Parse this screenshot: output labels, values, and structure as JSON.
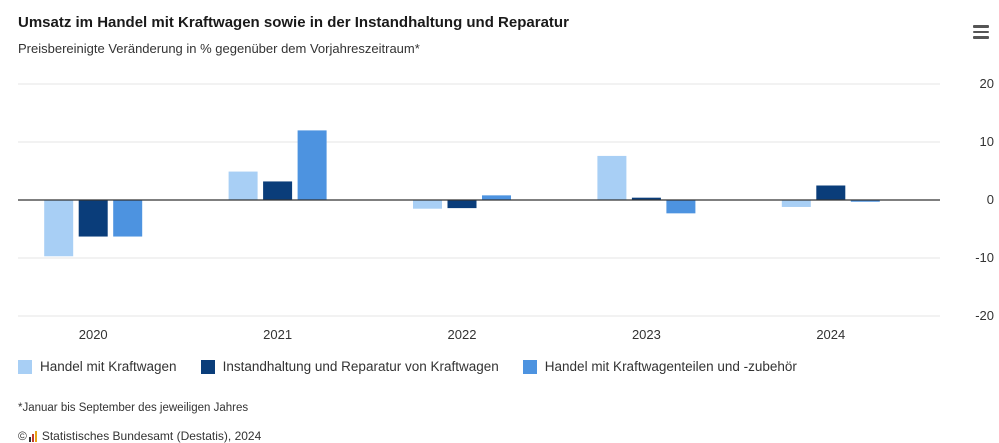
{
  "header": {
    "title": "Umsatz im Handel mit Kraftwagen sowie in der Instandhaltung und Reparatur",
    "subtitle": "Preisbereinigte Veränderung in % gegenüber dem Vorjahreszeitraum*"
  },
  "menu": {
    "icon": "hamburger-menu-icon"
  },
  "chart_data": {
    "type": "bar",
    "title": "Umsatz im Handel mit Kraftwagen sowie in der Instandhaltung und Reparatur",
    "subtitle": "Preisbereinigte Veränderung in % gegenüber dem Vorjahreszeitraum*",
    "categories": [
      "2020",
      "2021",
      "2022",
      "2023",
      "2024"
    ],
    "series": [
      {
        "name": "Handel mit Kraftwagen",
        "color": "#a8cff5",
        "values": [
          -9.7,
          4.9,
          -1.5,
          7.6,
          -1.2
        ]
      },
      {
        "name": "Instandhaltung und Reparatur von Kraftwagen",
        "color": "#0a3d7a",
        "values": [
          -6.3,
          3.2,
          -1.4,
          0.4,
          2.5
        ]
      },
      {
        "name": "Handel mit Kraftwagenteilen und -zubehör",
        "color": "#4d93e0",
        "values": [
          -6.3,
          12.0,
          0.8,
          -2.3,
          -0.3
        ]
      }
    ],
    "yticks": [
      "20",
      "10",
      "0",
      "-10",
      "-20"
    ],
    "ylim": [
      -20,
      20
    ],
    "xlabel": "",
    "ylabel": "",
    "y_axis_position": "right",
    "grid": true,
    "legend_position": "bottom-left"
  },
  "footnote": "*Januar bis September des jeweiligen Jahres",
  "source": {
    "copyright": "©",
    "logo_icon": "destatis-logo-icon",
    "text": "Statistisches Bundesamt (Destatis), 2024"
  }
}
